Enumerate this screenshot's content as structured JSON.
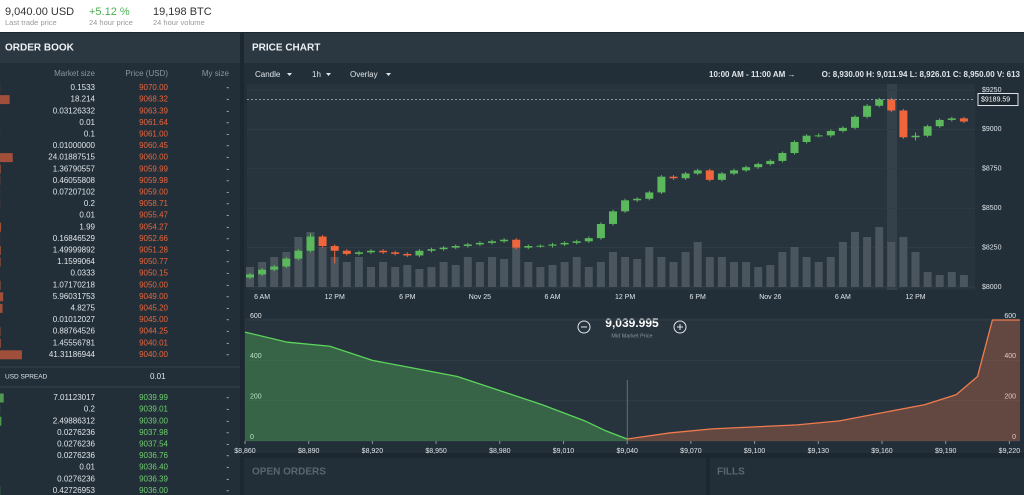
{
  "header": {
    "last_price": "9,040.00 USD",
    "last_price_label": "Last trade price",
    "change": "+5.12 %",
    "change_label": "24 hour price",
    "volume": "19,198 BTC",
    "volume_label": "24 hour volume"
  },
  "order_book": {
    "title": "ORDER BOOK",
    "columns": [
      "Market size",
      "Price (USD)",
      "My size"
    ],
    "asks": [
      [
        "0.1533",
        "9070.00",
        "-"
      ],
      [
        "18.214",
        "9068.32",
        "-"
      ],
      [
        "0.03126332",
        "9063.39",
        "-"
      ],
      [
        "0.01",
        "9061.64",
        "-"
      ],
      [
        "0.1",
        "9061.00",
        "-"
      ],
      [
        "0.01000000",
        "9060.45",
        "-"
      ],
      [
        "24.01887515",
        "9060.00",
        "-"
      ],
      [
        "1.36790557",
        "9059.99",
        "-"
      ],
      [
        "0.46055808",
        "9059.98",
        "-"
      ],
      [
        "0.07207102",
        "9059.00",
        "-"
      ],
      [
        "0.2",
        "9058.71",
        "-"
      ],
      [
        "0.01",
        "9055.47",
        "-"
      ],
      [
        "1.99",
        "9054.27",
        "-"
      ],
      [
        "0.16846529",
        "9052.66",
        "-"
      ],
      [
        "1.49999892",
        "9051.28",
        "-"
      ],
      [
        "1.1599064",
        "9050.77",
        "-"
      ],
      [
        "0.0333",
        "9050.15",
        "-"
      ],
      [
        "1.07170218",
        "9050.00",
        "-"
      ],
      [
        "5.96031753",
        "9049.00",
        "-"
      ],
      [
        "4.8275",
        "9045.20",
        "-"
      ],
      [
        "0.01012027",
        "9045.00",
        "-"
      ],
      [
        "0.88764526",
        "9044.25",
        "-"
      ],
      [
        "1.45556781",
        "9040.01",
        "-"
      ],
      [
        "41.31186944",
        "9040.00",
        "-"
      ]
    ],
    "spread_label": "USD SPREAD",
    "spread": "0.01",
    "bids": [
      [
        "7.01123017",
        "9039.99",
        "-"
      ],
      [
        "0.2",
        "9039.01",
        "-"
      ],
      [
        "2.49886312",
        "9039.00",
        "-"
      ],
      [
        "0.0276236",
        "9037.98",
        "-"
      ],
      [
        "0.0276236",
        "9037.54",
        "-"
      ],
      [
        "0.0276236",
        "9036.76",
        "-"
      ],
      [
        "0.01",
        "9036.40",
        "-"
      ],
      [
        "0.0276236",
        "9036.39",
        "-"
      ],
      [
        "0.42726953",
        "9036.00",
        "-"
      ]
    ]
  },
  "price_panel": {
    "title": "PRICE CHART",
    "controls": [
      "Candle",
      "1h",
      "Overlay"
    ],
    "range": "10:00 AM - 11:00 AM →",
    "ohlcv": "O: 8,930.00  H: 9,011.94  L: 8,926.01  C: 8,950.00  V: 613"
  },
  "bottom": {
    "open_orders": "OPEN ORDERS",
    "fills": "FILLS"
  },
  "chart_data": [
    {
      "type": "candlestick",
      "colors": {
        "up": "#5cb85c",
        "down": "#f0663c",
        "volume": "#4a555e"
      },
      "categories": [
        null,
        "6 AM",
        null,
        null,
        null,
        null,
        null,
        "12 PM",
        null,
        null,
        null,
        null,
        null,
        "6 PM",
        null,
        null,
        null,
        null,
        null,
        "Nov 25",
        null,
        null,
        null,
        null,
        null,
        "6 AM",
        null,
        null,
        null,
        null,
        null,
        "12 PM",
        null,
        null,
        null,
        null,
        null,
        "6 PM",
        null,
        null,
        null,
        null,
        null,
        "Nov 26",
        null,
        null,
        null,
        null,
        null,
        "6 AM",
        null,
        null,
        null,
        null,
        null,
        "12 PM",
        null,
        null,
        null,
        null
      ],
      "candles": [
        [
          8060,
          8090,
          8050,
          8080
        ],
        [
          8080,
          8120,
          8070,
          8110
        ],
        [
          8110,
          8140,
          8100,
          8130
        ],
        [
          8130,
          8190,
          8120,
          8180
        ],
        [
          8180,
          8240,
          8170,
          8230
        ],
        [
          8230,
          8340,
          8220,
          8320
        ],
        [
          8320,
          8330,
          8250,
          8260
        ],
        [
          8260,
          8270,
          8150,
          8230
        ],
        [
          8230,
          8240,
          8200,
          8210
        ],
        [
          8210,
          8230,
          8200,
          8220
        ],
        [
          8220,
          8240,
          8210,
          8230
        ],
        [
          8230,
          8240,
          8210,
          8220
        ],
        [
          8220,
          8230,
          8200,
          8210
        ],
        [
          8210,
          8220,
          8190,
          8200
        ],
        [
          8200,
          8240,
          8190,
          8230
        ],
        [
          8230,
          8250,
          8220,
          8240
        ],
        [
          8240,
          8260,
          8230,
          8250
        ],
        [
          8250,
          8270,
          8240,
          8260
        ],
        [
          8260,
          8280,
          8250,
          8270
        ],
        [
          8270,
          8290,
          8260,
          8280
        ],
        [
          8280,
          8300,
          8270,
          8290
        ],
        [
          8290,
          8310,
          8280,
          8300
        ],
        [
          8300,
          8310,
          8240,
          8250
        ],
        [
          8250,
          8270,
          8240,
          8260
        ],
        [
          8260,
          8270,
          8250,
          8262
        ],
        [
          8262,
          8280,
          8250,
          8270
        ],
        [
          8270,
          8290,
          8260,
          8280
        ],
        [
          8280,
          8300,
          8270,
          8290
        ],
        [
          8290,
          8320,
          8280,
          8310
        ],
        [
          8310,
          8410,
          8300,
          8400
        ],
        [
          8400,
          8490,
          8390,
          8480
        ],
        [
          8480,
          8560,
          8470,
          8550
        ],
        [
          8550,
          8570,
          8540,
          8560
        ],
        [
          8560,
          8610,
          8550,
          8600
        ],
        [
          8600,
          8710,
          8590,
          8700
        ],
        [
          8700,
          8710,
          8680,
          8690
        ],
        [
          8690,
          8730,
          8680,
          8720
        ],
        [
          8720,
          8750,
          8710,
          8740
        ],
        [
          8740,
          8750,
          8670,
          8680
        ],
        [
          8680,
          8730,
          8670,
          8720
        ],
        [
          8720,
          8750,
          8710,
          8740
        ],
        [
          8740,
          8770,
          8730,
          8760
        ],
        [
          8760,
          8790,
          8750,
          8780
        ],
        [
          8780,
          8810,
          8770,
          8800
        ],
        [
          8800,
          8860,
          8790,
          8850
        ],
        [
          8850,
          8930,
          8840,
          8920
        ],
        [
          8920,
          8970,
          8910,
          8960
        ],
        [
          8960,
          8975,
          8950,
          8962
        ],
        [
          8962,
          9000,
          8950,
          8990
        ],
        [
          8990,
          9020,
          8980,
          9010
        ],
        [
          9010,
          9090,
          9000,
          9080
        ],
        [
          9080,
          9160,
          9070,
          9150
        ],
        [
          9150,
          9200,
          9140,
          9190
        ],
        [
          9190,
          9200,
          9110,
          9120
        ],
        [
          9120,
          9130,
          8940,
          8950
        ],
        [
          8950,
          8980,
          8930,
          8960
        ],
        [
          8960,
          9030,
          8950,
          9020
        ],
        [
          9020,
          9070,
          9010,
          9060
        ],
        [
          9060,
          9080,
          9050,
          9070
        ],
        [
          9070,
          9080,
          9040,
          9050
        ]
      ],
      "volumes": [
        20,
        25,
        30,
        35,
        50,
        55,
        40,
        30,
        25,
        30,
        20,
        25,
        20,
        22,
        18,
        20,
        25,
        22,
        30,
        25,
        30,
        28,
        40,
        25,
        20,
        22,
        25,
        30,
        20,
        25,
        35,
        30,
        28,
        40,
        30,
        25,
        35,
        45,
        30,
        30,
        25,
        25,
        20,
        22,
        35,
        40,
        30,
        25,
        30,
        45,
        55,
        50,
        60,
        45,
        50,
        35,
        15,
        12,
        15,
        12
      ],
      "ylim": [
        8000,
        9250
      ],
      "yticks": [
        {
          "value": 8000,
          "label": "$8000"
        },
        {
          "value": 8250,
          "label": "$8250"
        },
        {
          "value": 8500,
          "label": "$8500"
        },
        {
          "value": 8750,
          "label": "$8750"
        },
        {
          "value": 9000,
          "label": "$9000"
        },
        {
          "value": 9250,
          "label": "$9250"
        }
      ],
      "price_tag": {
        "value": 9189.59,
        "label": "$9189.59"
      }
    },
    {
      "type": "depth",
      "mid_price": "9,039.995",
      "mid_label": "Mid Market Price",
      "bids": {
        "color": "#5cd65c",
        "x": [
          8860,
          8880,
          8900,
          8920,
          8940,
          8960,
          8980,
          9000,
          9020,
          9030,
          9039.99
        ],
        "y": [
          540,
          490,
          470,
          400,
          360,
          320,
          250,
          180,
          100,
          50,
          10
        ]
      },
      "asks": {
        "color": "#f07b4f",
        "x": [
          9040.01,
          9060,
          9080,
          9100,
          9120,
          9140,
          9160,
          9180,
          9195,
          9205,
          9212,
          9225
        ],
        "y": [
          10,
          40,
          60,
          70,
          80,
          100,
          140,
          180,
          230,
          320,
          600,
          600
        ]
      },
      "xlim": [
        8860,
        9225
      ],
      "xticks": [
        {
          "value": 8860,
          "label": "$8,860"
        },
        {
          "value": 8890,
          "label": "$8,890"
        },
        {
          "value": 8920,
          "label": "$8,920"
        },
        {
          "value": 8950,
          "label": "$8,950"
        },
        {
          "value": 8980,
          "label": "$8,980"
        },
        {
          "value": 9010,
          "label": "$9,010"
        },
        {
          "value": 9040,
          "label": "$9,040"
        },
        {
          "value": 9070,
          "label": "$9,070"
        },
        {
          "value": 9100,
          "label": "$9,100"
        },
        {
          "value": 9130,
          "label": "$9,130"
        },
        {
          "value": 9160,
          "label": "$9,160"
        },
        {
          "value": 9190,
          "label": "$9,190"
        },
        {
          "value": 9220,
          "label": "$9,220"
        }
      ],
      "ylim": [
        0,
        610
      ],
      "yticks": [
        0,
        200,
        400,
        600
      ]
    }
  ]
}
